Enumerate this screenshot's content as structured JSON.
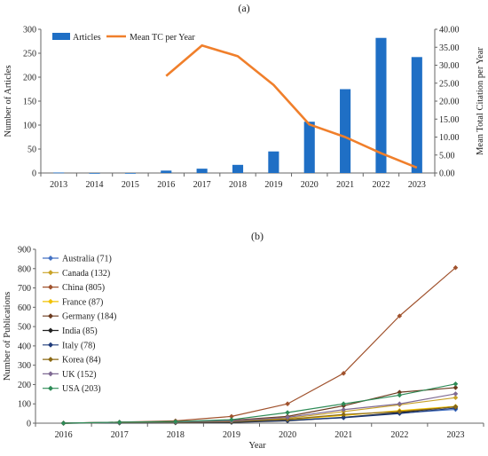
{
  "chart_data": [
    {
      "type": "bar",
      "panel_label": "(a)",
      "categories": [
        "2013",
        "2014",
        "2015",
        "2016",
        "2017",
        "2018",
        "2019",
        "2020",
        "2021",
        "2022",
        "2023"
      ],
      "series": [
        {
          "name": "Articles",
          "kind": "bar",
          "axis": "left",
          "color": "#1F6FC5",
          "values": [
            1,
            0,
            0,
            5,
            9,
            17,
            45,
            107,
            175,
            282,
            242
          ]
        },
        {
          "name": "Mean TC per Year",
          "kind": "line",
          "axis": "right",
          "color": "#F07F2B",
          "values": [
            null,
            null,
            null,
            27.0,
            35.5,
            32.5,
            24.5,
            13.5,
            10.0,
            5.5,
            1.5
          ]
        }
      ],
      "ylabel": "Number of Articles",
      "y2label": "Mean Total Citation per Year",
      "ylim": [
        0,
        300
      ],
      "y2lim": [
        0,
        40
      ],
      "yticks": [
        "0",
        "50",
        "100",
        "150",
        "200",
        "250",
        "300"
      ],
      "y2ticks": [
        "0.00",
        "5.00",
        "10.00",
        "15.00",
        "20.00",
        "25.00",
        "30.00",
        "35.00",
        "40.00"
      ],
      "legend": "top-left",
      "grid": false
    },
    {
      "type": "line",
      "panel_label": "(b)",
      "categories": [
        "2016",
        "2017",
        "2018",
        "2019",
        "2020",
        "2021",
        "2022",
        "2023"
      ],
      "series": [
        {
          "name": "Australia (71)",
          "color": "#4472C4",
          "values": [
            0,
            2,
            3,
            7,
            15,
            30,
            52,
            71
          ]
        },
        {
          "name": "Canada (132)",
          "color": "#C9A227",
          "values": [
            0,
            3,
            5,
            10,
            25,
            60,
            95,
            132
          ]
        },
        {
          "name": "China (805)",
          "color": "#A0522D",
          "values": [
            0,
            5,
            12,
            35,
            100,
            258,
            555,
            805
          ]
        },
        {
          "name": "France (87)",
          "color": "#F2C200",
          "values": [
            0,
            2,
            4,
            8,
            18,
            40,
            65,
            87
          ]
        },
        {
          "name": "Germany (184)",
          "color": "#6B3A1E",
          "values": [
            0,
            5,
            8,
            15,
            35,
            90,
            160,
            184
          ]
        },
        {
          "name": "India (85)",
          "color": "#222222",
          "values": [
            0,
            1,
            2,
            4,
            12,
            30,
            55,
            85
          ]
        },
        {
          "name": "Italy (78)",
          "color": "#1F3B7A",
          "values": [
            0,
            2,
            3,
            6,
            14,
            28,
            50,
            78
          ]
        },
        {
          "name": "Korea (84)",
          "color": "#8B6914",
          "values": [
            0,
            3,
            4,
            8,
            20,
            45,
            60,
            84
          ]
        },
        {
          "name": "UK (152)",
          "color": "#7F6A93",
          "values": [
            0,
            4,
            6,
            12,
            30,
            70,
            100,
            152
          ]
        },
        {
          "name": "USA (203)",
          "color": "#2E8B57",
          "values": [
            0,
            5,
            8,
            18,
            55,
            100,
            145,
            203
          ]
        }
      ],
      "xlabel": "Year",
      "ylabel": "Number of Publications",
      "ylim": [
        0,
        900
      ],
      "yticks": [
        "0",
        "100",
        "200",
        "300",
        "400",
        "500",
        "600",
        "700",
        "800",
        "900"
      ],
      "legend": "top-left",
      "grid": false
    }
  ]
}
